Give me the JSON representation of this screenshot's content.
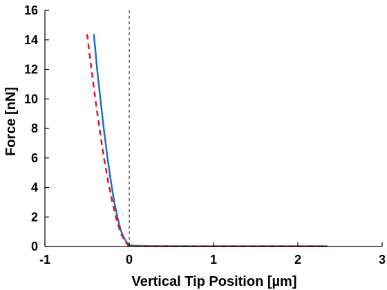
{
  "chart_data": {
    "type": "line",
    "title": "",
    "xlabel": "Vertical Tip Position [µm]",
    "ylabel": "Force [nN]",
    "xlim": [
      -1,
      3
    ],
    "ylim": [
      0,
      16
    ],
    "xticks": [
      -1,
      0,
      1,
      2,
      3
    ],
    "yticks": [
      0,
      2,
      4,
      6,
      8,
      10,
      12,
      14,
      16
    ],
    "grid": false,
    "legend": "none",
    "reference_lines": [
      {
        "orientation": "vertical",
        "value": 0,
        "style": "dashed",
        "color": "#000000"
      },
      {
        "orientation": "horizontal",
        "value": 0,
        "style": "dashed",
        "color": "#000000"
      }
    ],
    "series": [
      {
        "style": "solid",
        "color": "#1f6fbf",
        "x": [
          -0.42,
          -0.38,
          -0.34,
          -0.3,
          -0.26,
          -0.22,
          -0.18,
          -0.14,
          -0.1,
          -0.06,
          -0.02,
          0.0,
          0.05,
          0.2,
          0.5,
          1.0,
          1.5,
          2.0,
          2.35
        ],
        "y": [
          14.4,
          12.0,
          9.9,
          7.9,
          6.1,
          4.5,
          3.1,
          2.0,
          1.1,
          0.55,
          0.2,
          0.1,
          0.05,
          0.03,
          0.02,
          0.02,
          0.02,
          0.02,
          0.02
        ]
      },
      {
        "style": "dashed",
        "color": "#e8141c",
        "x": [
          -0.5,
          -0.45,
          -0.4,
          -0.35,
          -0.3,
          -0.25,
          -0.2,
          -0.15,
          -0.1,
          -0.05,
          -0.02,
          0.0,
          0.05,
          0.2,
          0.5,
          1.0,
          1.5,
          2.0,
          2.35
        ],
        "y": [
          14.4,
          12.1,
          9.9,
          7.9,
          6.0,
          4.4,
          3.0,
          1.8,
          0.9,
          0.35,
          0.12,
          0.05,
          0.03,
          0.02,
          0.02,
          0.02,
          0.02,
          0.02,
          0.02
        ]
      }
    ]
  }
}
